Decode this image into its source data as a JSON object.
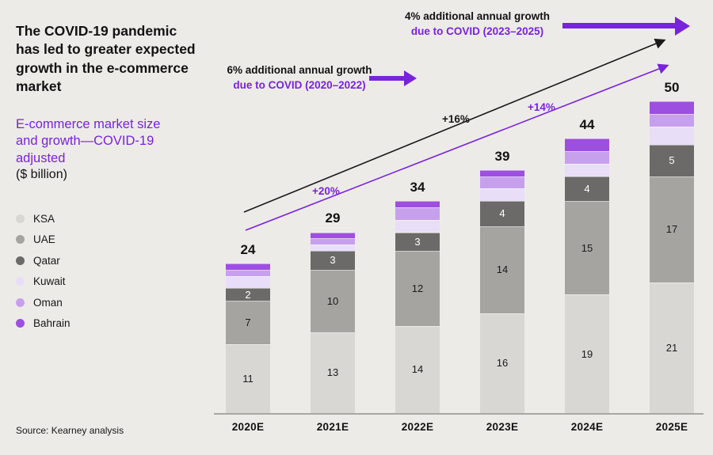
{
  "header": {
    "title": "The COVID-19 pandemic has led to greater expected growth in the e-commerce market",
    "subtitle": "E-commerce market size and growth—COVID-19 adjusted",
    "unit": "($ billion)"
  },
  "legend": {
    "items": [
      {
        "label": "KSA",
        "color": "#d8d7d4"
      },
      {
        "label": "UAE",
        "color": "#a5a4a1"
      },
      {
        "label": "Qatar",
        "color": "#6b6a68"
      },
      {
        "label": "Kuwait",
        "color": "#e9def8"
      },
      {
        "label": "Oman",
        "color": "#c7a0ed"
      },
      {
        "label": "Bahrain",
        "color": "#9d4fe0"
      }
    ]
  },
  "source": "Source: Kearney analysis",
  "annotations": {
    "covid_2020_2022": {
      "line1": "6% additional annual growth",
      "line2": "due to COVID (2020–2022)"
    },
    "covid_2023_2025": {
      "line1": "4% additional annual growth",
      "line2": "due to COVID (2023–2025)"
    }
  },
  "chart_data": {
    "type": "bar",
    "stacked": true,
    "title": "E-commerce market size and growth—COVID-19 adjusted ($ billion)",
    "categories": [
      "2020E",
      "2021E",
      "2022E",
      "2023E",
      "2024E",
      "2025E"
    ],
    "totals": [
      24,
      29,
      34,
      39,
      44,
      50
    ],
    "series": [
      {
        "name": "KSA",
        "color": "#d8d7d4",
        "values": [
          11,
          13,
          14,
          16,
          19,
          21
        ],
        "labeled": true,
        "label_color": "#1a1a1a"
      },
      {
        "name": "UAE",
        "color": "#a5a4a1",
        "values": [
          7,
          10,
          12,
          14,
          15,
          17
        ],
        "labeled": true,
        "label_color": "#1a1a1a"
      },
      {
        "name": "Qatar",
        "color": "#6b6a68",
        "values": [
          2,
          3,
          3,
          4,
          4,
          5
        ],
        "labeled": true,
        "label_color": "#ffffff"
      },
      {
        "name": "Kuwait",
        "color": "#e9def8",
        "values": [
          2,
          1,
          2,
          2,
          2,
          3
        ],
        "labeled": false,
        "label_color": "#1a1a1a"
      },
      {
        "name": "Oman",
        "color": "#c7a0ed",
        "values": [
          1,
          1,
          2,
          2,
          2,
          2
        ],
        "labeled": false,
        "label_color": "#1a1a1a"
      },
      {
        "name": "Bahrain",
        "color": "#9d4fe0",
        "values": [
          1,
          1,
          1,
          1,
          2,
          2
        ],
        "labeled": false,
        "label_color": "#ffffff"
      }
    ],
    "growth_labels": [
      {
        "text": "+20%",
        "color": "#7823dc"
      },
      {
        "text": "+16%",
        "color": "#1a1a1a"
      },
      {
        "text": "+14%",
        "color": "#7823dc"
      }
    ],
    "xlabel": "",
    "ylabel": "$ billion",
    "ylim": [
      0,
      52
    ],
    "grid": false,
    "legend_position": "left",
    "accent_color": "#7823dc"
  }
}
